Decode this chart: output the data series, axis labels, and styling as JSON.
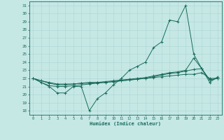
{
  "xlabel": "Humidex (Indice chaleur)",
  "xlim": [
    -0.5,
    23.5
  ],
  "ylim": [
    17.5,
    31.5
  ],
  "yticks": [
    18,
    19,
    20,
    21,
    22,
    23,
    24,
    25,
    26,
    27,
    28,
    29,
    30,
    31
  ],
  "xticks": [
    0,
    1,
    2,
    3,
    4,
    5,
    6,
    7,
    8,
    9,
    10,
    11,
    12,
    13,
    14,
    15,
    16,
    17,
    18,
    19,
    20,
    21,
    22,
    23
  ],
  "bg_color": "#c5e8e5",
  "line_color": "#1a6b5a",
  "grid_color": "#b0d8d4",
  "lines": [
    [
      22.0,
      21.5,
      21.0,
      20.2,
      20.2,
      21.0,
      21.0,
      18.0,
      19.5,
      20.2,
      21.2,
      22.0,
      23.0,
      23.5,
      24.0,
      25.8,
      26.5,
      29.2,
      29.0,
      31.0,
      25.0,
      23.2,
      21.5,
      22.2
    ],
    [
      22.0,
      21.7,
      21.4,
      21.2,
      21.2,
      21.3,
      21.4,
      21.4,
      21.5,
      21.5,
      21.6,
      21.7,
      21.8,
      21.9,
      22.0,
      22.2,
      22.4,
      22.6,
      22.7,
      22.9,
      23.1,
      23.2,
      21.8,
      22.0
    ],
    [
      22.0,
      21.7,
      21.5,
      21.3,
      21.3,
      21.3,
      21.4,
      21.5,
      21.5,
      21.6,
      21.7,
      21.8,
      21.9,
      22.0,
      22.1,
      22.3,
      22.5,
      22.7,
      22.8,
      23.0,
      24.5,
      23.2,
      21.8,
      22.0
    ],
    [
      22.0,
      21.5,
      21.1,
      21.0,
      21.0,
      21.1,
      21.2,
      21.3,
      21.4,
      21.5,
      21.6,
      21.7,
      21.8,
      21.9,
      22.0,
      22.1,
      22.2,
      22.3,
      22.4,
      22.5,
      22.5,
      22.7,
      22.0,
      22.0
    ]
  ]
}
